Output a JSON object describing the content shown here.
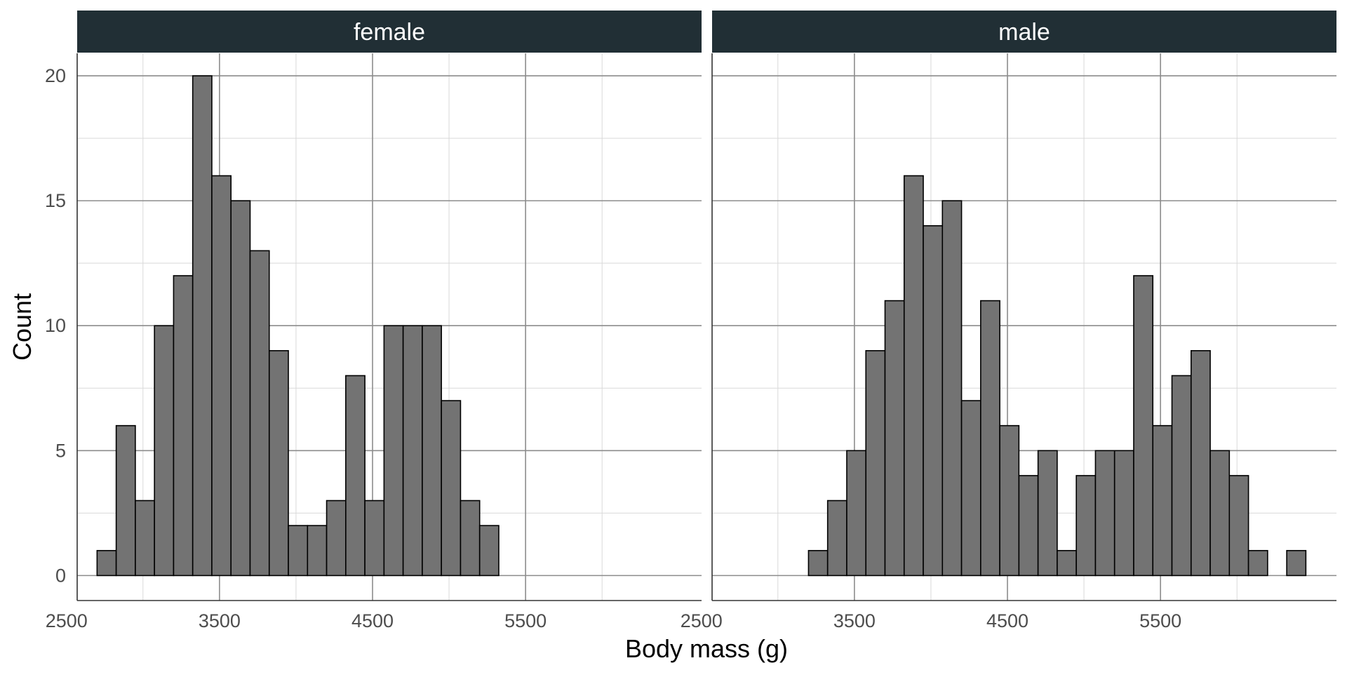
{
  "chart_data": {
    "type": "bar",
    "chart_kind": "histogram",
    "xlabel": "Body mass (g)",
    "ylabel": "Count",
    "ylim": [
      -1,
      20.9
    ],
    "xlim": [
      2570,
      6650
    ],
    "y_ticks": [
      0,
      5,
      10,
      15,
      20
    ],
    "x_ticks": [
      2500,
      3500,
      4500,
      5500
    ],
    "grid": true,
    "bar_fill": "#737373",
    "bar_stroke": "#000000",
    "strip_fill": "#212F35",
    "strip_text_color": "#FFFFFF",
    "bin_edges": [
      2700,
      2825,
      2950,
      3075,
      3200,
      3325,
      3450,
      3575,
      3700,
      3825,
      3950,
      4075,
      4200,
      4325,
      4450,
      4575,
      4700,
      4825,
      4950,
      5075,
      5200,
      5325,
      5450,
      5575,
      5700,
      5825,
      5950,
      6075,
      6200,
      6325,
      6450
    ],
    "panels": [
      {
        "name": "female",
        "values": [
          1,
          6,
          3,
          10,
          12,
          20,
          16,
          15,
          13,
          9,
          2,
          2,
          3,
          8,
          3,
          10,
          10,
          10,
          7,
          3,
          2,
          0,
          0,
          0,
          0,
          0,
          0,
          0,
          0,
          0
        ]
      },
      {
        "name": "male",
        "values": [
          0,
          0,
          0,
          0,
          1,
          3,
          5,
          9,
          11,
          16,
          14,
          15,
          7,
          11,
          6,
          4,
          5,
          1,
          4,
          5,
          5,
          12,
          6,
          8,
          9,
          5,
          4,
          1,
          0,
          1
        ]
      }
    ]
  }
}
